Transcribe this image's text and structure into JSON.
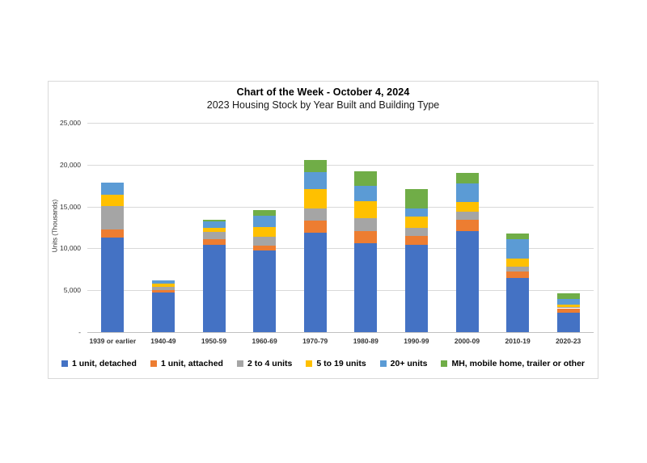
{
  "chart": {
    "title": "Chart of the Week - October 4, 2024",
    "subtitle": "2023 Housing Stock by Year Built and Building Type",
    "y_axis_title": "Units (Thousands)"
  },
  "chart_data": {
    "type": "bar",
    "stacked": true,
    "title": "Chart of the Week - October 4, 2024",
    "subtitle": "2023 Housing Stock by Year Built and Building Type",
    "xlabel": "",
    "ylabel": "Units (Thousands)",
    "ylim": [
      0,
      25000
    ],
    "ytick_step": 5000,
    "ytick_labels": [
      "-",
      "5,000",
      "10,000",
      "15,000",
      "20,000",
      "25,000"
    ],
    "grid": true,
    "legend_position": "bottom",
    "categories": [
      "1939 or earlier",
      "1940-49",
      "1950-59",
      "1960-69",
      "1970-79",
      "1980-89",
      "1990-99",
      "2000-09",
      "2010-19",
      "2020-23"
    ],
    "series": [
      {
        "name": "1 unit, detached",
        "color": "#4472C4",
        "values": [
          11300,
          4700,
          10400,
          9750,
          11900,
          10650,
          10450,
          12100,
          6450,
          2300
        ]
      },
      {
        "name": "1 unit, attached",
        "color": "#ED7D31",
        "values": [
          950,
          300,
          750,
          600,
          1450,
          1400,
          1050,
          1350,
          800,
          550
        ]
      },
      {
        "name": "2 to 4 units",
        "color": "#A5A5A5",
        "values": [
          2850,
          450,
          800,
          1000,
          1400,
          1550,
          1000,
          950,
          550,
          100
        ]
      },
      {
        "name": "5 to 19 units",
        "color": "#FFC000",
        "values": [
          1300,
          350,
          550,
          1200,
          2350,
          2000,
          1300,
          1100,
          950,
          300
        ]
      },
      {
        "name": "20+ units",
        "color": "#5B9BD5",
        "values": [
          1450,
          350,
          750,
          1350,
          2000,
          1900,
          1000,
          2300,
          2350,
          750
        ]
      },
      {
        "name": "MH, mobile home, trailer or other",
        "color": "#70AD47",
        "values": [
          0,
          0,
          200,
          650,
          1500,
          1750,
          2300,
          1200,
          700,
          650
        ]
      }
    ]
  }
}
